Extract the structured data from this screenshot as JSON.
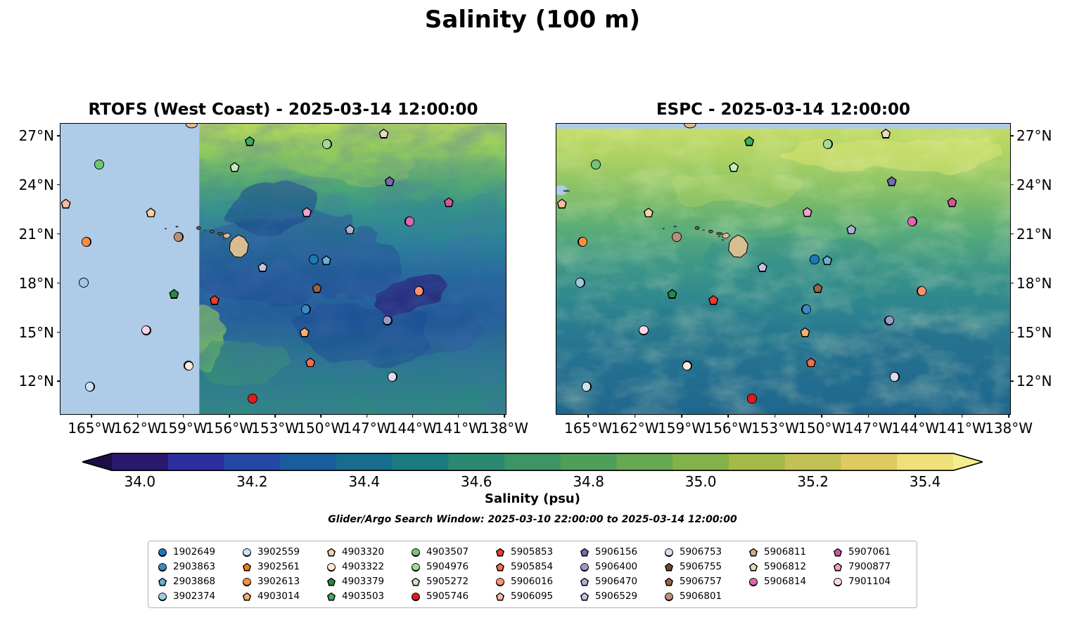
{
  "title": "Salinity (100 m)",
  "panels": [
    {
      "title": "RTOFS (West Coast) - 2025-03-14 12:00:00"
    },
    {
      "title": "ESPC - 2025-03-14 12:00:00"
    }
  ],
  "axes": {
    "x_ticks": [
      {
        "label": "165°W",
        "pos": 7.0
      },
      {
        "label": "162°W",
        "pos": 17.3
      },
      {
        "label": "159°W",
        "pos": 27.6
      },
      {
        "label": "156°W",
        "pos": 37.9
      },
      {
        "label": "153°W",
        "pos": 48.2
      },
      {
        "label": "150°W",
        "pos": 58.5
      },
      {
        "label": "147°W",
        "pos": 68.8
      },
      {
        "label": "144°W",
        "pos": 79.1
      },
      {
        "label": "141°W",
        "pos": 89.4
      },
      {
        "label": "138°W",
        "pos": 99.7
      }
    ],
    "y_ticks": [
      {
        "label": "27°N",
        "pos": 4.1
      },
      {
        "label": "24°N",
        "pos": 21.0
      },
      {
        "label": "21°N",
        "pos": 37.9
      },
      {
        "label": "18°N",
        "pos": 54.9
      },
      {
        "label": "15°N",
        "pos": 71.8
      },
      {
        "label": "12°N",
        "pos": 88.7
      }
    ]
  },
  "colorbar": {
    "label": "Salinity (psu)",
    "ticks": [
      "34.0",
      "34.2",
      "34.4",
      "34.6",
      "34.8",
      "35.0",
      "35.2",
      "35.4"
    ],
    "bar_range": [
      33.95,
      35.45
    ],
    "segment_colors": [
      "#2a186d",
      "#2b2f9e",
      "#2349a5",
      "#1a5d9d",
      "#186d8e",
      "#1c7b80",
      "#2b8972",
      "#3d9465",
      "#4f9f5b",
      "#66a951",
      "#83b24a",
      "#a3ba48",
      "#c3c153",
      "#dfca62",
      "#efe07a"
    ],
    "left_arrow_color": "#1c0d45",
    "right_arrow_color": "#f5ee8d"
  },
  "search_window": "Glider/Argo Search Window: 2025-03-10 22:00:00 to 2025-03-14 12:00:00",
  "map_colors": {
    "no_data": "#aecbe8",
    "land": "#d8bd92"
  },
  "floats": {
    "1902649": {
      "color": "#1f77b4",
      "shape": "circle"
    },
    "2903863": {
      "color": "#3a8ac0",
      "shape": "circle"
    },
    "2903868": {
      "color": "#6baed6",
      "shape": "pentagon"
    },
    "3902374": {
      "color": "#9ecae1",
      "shape": "circle"
    },
    "3902559": {
      "color": "#cfe1f2",
      "shape": "circle"
    },
    "3902561": {
      "color": "#f07f12",
      "shape": "pentagon"
    },
    "3902613": {
      "color": "#fd8d3c",
      "shape": "circle"
    },
    "4903014": {
      "color": "#fdae6b",
      "shape": "pentagon"
    },
    "4903320": {
      "color": "#fdd0a2",
      "shape": "pentagon"
    },
    "4903322": {
      "color": "#fee8d8",
      "shape": "circle"
    },
    "4903379": {
      "color": "#238b45",
      "shape": "pentagon"
    },
    "4903503": {
      "color": "#41ab5d",
      "shape": "pentagon"
    },
    "4903507": {
      "color": "#74c476",
      "shape": "circle"
    },
    "5904976": {
      "color": "#a1d99b",
      "shape": "circle"
    },
    "5905272": {
      "color": "#c7e9c0",
      "shape": "pentagon"
    },
    "5905746": {
      "color": "#e31a1c",
      "shape": "circle"
    },
    "5905853": {
      "color": "#ef3b2c",
      "shape": "pentagon"
    },
    "5905854": {
      "color": "#fb6a4a",
      "shape": "pentagon"
    },
    "5906016": {
      "color": "#fc9272",
      "shape": "circle"
    },
    "5906095": {
      "color": "#fcbba1",
      "shape": "pentagon"
    },
    "5906156": {
      "color": "#756bb1",
      "shape": "pentagon"
    },
    "5906400": {
      "color": "#9e9ac8",
      "shape": "circle"
    },
    "5906470": {
      "color": "#b4aed6",
      "shape": "pentagon"
    },
    "5906529": {
      "color": "#c6c2e0",
      "shape": "pentagon"
    },
    "5906753": {
      "color": "#dedcec",
      "shape": "circle"
    },
    "5906755": {
      "color": "#72453a",
      "shape": "pentagon"
    },
    "5906757": {
      "color": "#9c6248",
      "shape": "pentagon"
    },
    "5906801": {
      "color": "#bd8e76",
      "shape": "circle"
    },
    "5906811": {
      "color": "#d2a985",
      "shape": "pentagon"
    },
    "5906812": {
      "color": "#ead8c0",
      "shape": "pentagon"
    },
    "5906814": {
      "color": "#df65b0",
      "shape": "circle"
    },
    "5907061": {
      "color": "#d6569e",
      "shape": "pentagon"
    },
    "7900877": {
      "color": "#f2a3cb",
      "shape": "pentagon"
    },
    "7901104": {
      "color": "#fbd5e5",
      "shape": "circle"
    }
  },
  "legend_columns": [
    [
      "1902649",
      "2903863",
      "2903868",
      "3902374"
    ],
    [
      "3902559",
      "3902561",
      "3902613",
      "4903014"
    ],
    [
      "4903320",
      "4903322",
      "4903379",
      "4903503"
    ],
    [
      "4903507",
      "5904976",
      "5905272",
      "5905746"
    ],
    [
      "5905853",
      "5905854",
      "5906016",
      "5906095"
    ],
    [
      "5906156",
      "5906400",
      "5906470",
      "5906529"
    ],
    [
      "5906753",
      "5906755",
      "5906757",
      "5906801"
    ],
    [
      "5906811",
      "5906812",
      "5906814"
    ],
    [
      "5907061",
      "7900877",
      "7901104"
    ]
  ],
  "markers": [
    {
      "id": "5906095",
      "x": 1.2,
      "y": 27.5
    },
    {
      "id": "4903507",
      "x": 8.7,
      "y": 14.0
    },
    {
      "id": "3902613",
      "x": 5.8,
      "y": 40.7
    },
    {
      "id": "3902374",
      "x": 5.2,
      "y": 54.7
    },
    {
      "id": "3902559",
      "x": 6.6,
      "y": 90.6
    },
    {
      "id": "4903320",
      "x": 20.3,
      "y": 30.6
    },
    {
      "id": "5906801",
      "x": 26.5,
      "y": 39.0
    },
    {
      "id": "4903379",
      "x": 25.5,
      "y": 58.6
    },
    {
      "id": "7901104",
      "x": 19.2,
      "y": 71.1
    },
    {
      "id": "4903322",
      "x": 28.8,
      "y": 83.4
    },
    {
      "id": "4903503",
      "x": 42.5,
      "y": 6.0
    },
    {
      "id": "5905272",
      "x": 39.1,
      "y": 14.9
    },
    {
      "id": "5904976",
      "x": 59.8,
      "y": 7.0
    },
    {
      "id": "5906812",
      "x": 72.6,
      "y": 3.4
    },
    {
      "id": "5906156",
      "x": 73.9,
      "y": 19.8
    },
    {
      "id": "5907061",
      "x": 87.2,
      "y": 27.0
    },
    {
      "id": "7900877",
      "x": 55.3,
      "y": 30.4
    },
    {
      "id": "5906814",
      "x": 78.4,
      "y": 33.7
    },
    {
      "id": "5906470",
      "x": 65.0,
      "y": 36.4
    },
    {
      "id": "5906529",
      "x": 45.4,
      "y": 49.4
    },
    {
      "id": "1902649",
      "x": 56.9,
      "y": 46.7
    },
    {
      "id": "2903868",
      "x": 59.7,
      "y": 47.0
    },
    {
      "id": "5906757",
      "x": 57.6,
      "y": 56.6
    },
    {
      "id": "5905853",
      "x": 34.6,
      "y": 60.7
    },
    {
      "id": "2903863",
      "x": 55.1,
      "y": 63.9
    },
    {
      "id": "4903014",
      "x": 54.8,
      "y": 71.8
    },
    {
      "id": "5906400",
      "x": 73.4,
      "y": 67.7
    },
    {
      "id": "5906016",
      "x": 80.5,
      "y": 57.6
    },
    {
      "id": "5905854",
      "x": 56.1,
      "y": 82.2
    },
    {
      "id": "5906753",
      "x": 74.5,
      "y": 87.2
    },
    {
      "id": "5905746",
      "x": 43.1,
      "y": 94.7
    }
  ],
  "chart_data": {
    "type": "map",
    "title": "Salinity (100 m)",
    "subtitle": "Glider/Argo Search Window: 2025-03-10 22:00:00 to 2025-03-14 12:00:00",
    "panels": [
      {
        "title": "RTOFS (West Coast) - 2025-03-14 12:00:00",
        "no_data_region_lon_w": [
          167.1,
          158.0
        ]
      },
      {
        "title": "ESPC - 2025-03-14 12:00:00"
      }
    ],
    "lon_range_deg_w": [
      167.1,
      137.9
    ],
    "lat_range_deg_n": [
      10.0,
      27.7
    ],
    "colorbar": {
      "label": "Salinity (psu)",
      "min": 34.0,
      "max": 35.4,
      "ticks": [
        34.0,
        34.2,
        34.4,
        34.6,
        34.8,
        35.0,
        35.2,
        35.4
      ],
      "extended_both_ends": true
    },
    "float_positions": [
      {
        "id": "5906095",
        "lon_w": 166.9,
        "lat_n": 22.9
      },
      {
        "id": "4903507",
        "lon_w": 164.5,
        "lat_n": 25.3
      },
      {
        "id": "3902613",
        "lon_w": 165.4,
        "lat_n": 20.5
      },
      {
        "id": "3902374",
        "lon_w": 165.6,
        "lat_n": 18.1
      },
      {
        "id": "3902559",
        "lon_w": 165.1,
        "lat_n": 11.7
      },
      {
        "id": "4903320",
        "lon_w": 161.1,
        "lat_n": 22.3
      },
      {
        "id": "5906801",
        "lon_w": 159.3,
        "lat_n": 20.8
      },
      {
        "id": "4903379",
        "lon_w": 159.6,
        "lat_n": 17.4
      },
      {
        "id": "7901104",
        "lon_w": 161.5,
        "lat_n": 15.1
      },
      {
        "id": "4903322",
        "lon_w": 158.7,
        "lat_n": 13.0
      },
      {
        "id": "4903503",
        "lon_w": 154.7,
        "lat_n": 26.7
      },
      {
        "id": "5905272",
        "lon_w": 155.7,
        "lat_n": 25.1
      },
      {
        "id": "5904976",
        "lon_w": 149.6,
        "lat_n": 26.5
      },
      {
        "id": "5906812",
        "lon_w": 145.9,
        "lat_n": 27.1
      },
      {
        "id": "5906156",
        "lon_w": 145.5,
        "lat_n": 24.2
      },
      {
        "id": "5907061",
        "lon_w": 141.6,
        "lat_n": 23.0
      },
      {
        "id": "7900877",
        "lon_w": 150.9,
        "lat_n": 22.4
      },
      {
        "id": "5906814",
        "lon_w": 144.2,
        "lat_n": 21.8
      },
      {
        "id": "5906470",
        "lon_w": 148.1,
        "lat_n": 21.3
      },
      {
        "id": "5906529",
        "lon_w": 153.8,
        "lat_n": 19.0
      },
      {
        "id": "1902649",
        "lon_w": 150.5,
        "lat_n": 19.5
      },
      {
        "id": "2903868",
        "lon_w": 149.6,
        "lat_n": 19.4
      },
      {
        "id": "5906757",
        "lon_w": 150.3,
        "lat_n": 17.7
      },
      {
        "id": "5905853",
        "lon_w": 157.0,
        "lat_n": 17.0
      },
      {
        "id": "2903863",
        "lon_w": 151.0,
        "lat_n": 16.4
      },
      {
        "id": "4903014",
        "lon_w": 151.1,
        "lat_n": 15.0
      },
      {
        "id": "5906400",
        "lon_w": 145.6,
        "lat_n": 15.7
      },
      {
        "id": "5906016",
        "lon_w": 143.6,
        "lat_n": 17.5
      },
      {
        "id": "5905854",
        "lon_w": 150.7,
        "lat_n": 13.2
      },
      {
        "id": "5906753",
        "lon_w": 145.3,
        "lat_n": 12.3
      },
      {
        "id": "5905746",
        "lon_w": 154.5,
        "lat_n": 11.0
      }
    ]
  }
}
